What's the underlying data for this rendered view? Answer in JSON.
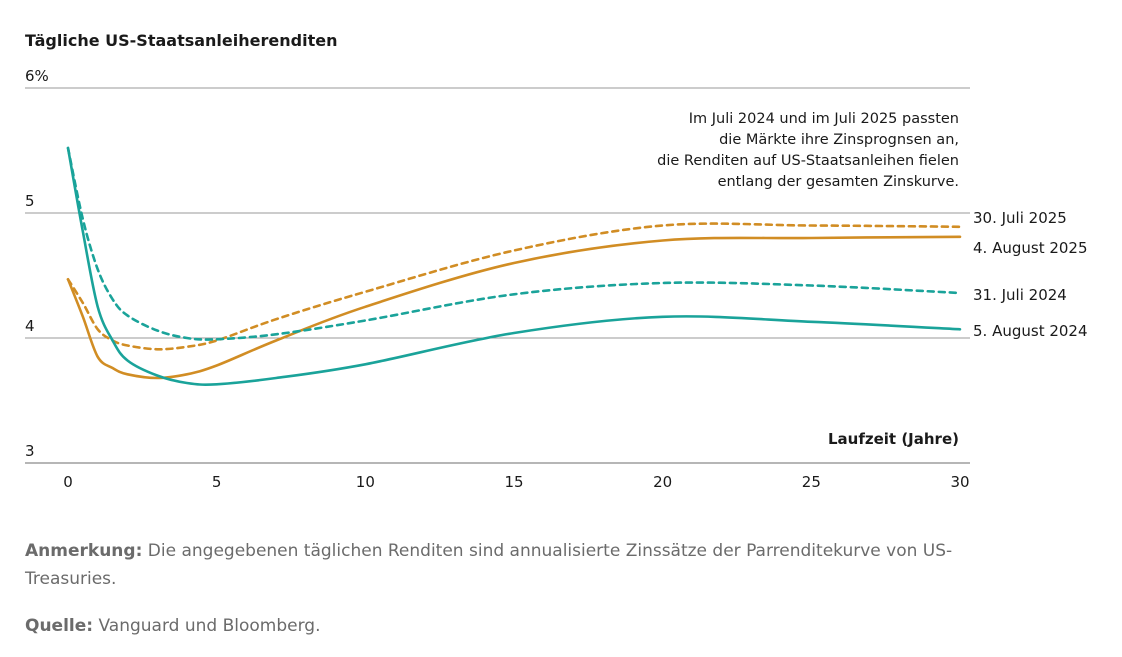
{
  "chart_data": {
    "type": "line",
    "title": "Tägliche US-Staatsanleiherenditen",
    "xlabel": "Laufzeit (Jahre)",
    "ylabel": "",
    "xlim": [
      0,
      30
    ],
    "ylim": [
      3,
      6
    ],
    "x_ticks": [
      0,
      5,
      10,
      15,
      20,
      25,
      30
    ],
    "y_ticks": [
      {
        "value": 6,
        "label": "6%"
      },
      {
        "value": 5,
        "label": "5"
      },
      {
        "value": 4,
        "label": "4"
      },
      {
        "value": 3,
        "label": "3"
      }
    ],
    "annotation": [
      "Im Juli 2024 und im Juli 2025 passten",
      "die Märkte ihre Zinsprognsen an,",
      "die Renditen auf US-Staatsanleihen fielen",
      "entlang der gesamten Zinskurve."
    ],
    "series": [
      {
        "name": "30. Juli 2025",
        "color": "#d18d24",
        "dashed": true,
        "x": [
          0,
          0.5,
          1,
          1.5,
          2,
          3,
          4,
          5,
          7,
          10,
          15,
          20,
          25,
          30
        ],
        "values": [
          4.47,
          4.28,
          4.07,
          3.98,
          3.94,
          3.91,
          3.93,
          3.98,
          4.15,
          4.37,
          4.7,
          4.9,
          4.9,
          4.89
        ]
      },
      {
        "name": "4. August 2025",
        "color": "#d18d24",
        "dashed": false,
        "x": [
          0,
          0.5,
          1,
          1.5,
          2,
          3,
          4,
          5,
          7,
          10,
          15,
          20,
          25,
          30
        ],
        "values": [
          4.47,
          4.17,
          3.85,
          3.76,
          3.71,
          3.68,
          3.71,
          3.78,
          3.98,
          4.25,
          4.6,
          4.78,
          4.8,
          4.81
        ]
      },
      {
        "name": "31. Juli 2024",
        "color": "#1aa39a",
        "dashed": true,
        "x": [
          0,
          0.5,
          1,
          1.5,
          2,
          3,
          4,
          5,
          7,
          10,
          15,
          20,
          25,
          30
        ],
        "values": [
          5.52,
          4.95,
          4.55,
          4.31,
          4.18,
          4.06,
          4.0,
          3.99,
          4.03,
          4.14,
          4.35,
          4.44,
          4.42,
          4.36
        ]
      },
      {
        "name": "5. August 2024",
        "color": "#1aa39a",
        "dashed": false,
        "x": [
          0,
          0.5,
          1,
          1.5,
          2,
          3,
          4,
          5,
          7,
          10,
          15,
          20,
          25,
          30
        ],
        "values": [
          5.52,
          4.85,
          4.25,
          3.98,
          3.82,
          3.7,
          3.64,
          3.63,
          3.68,
          3.79,
          4.04,
          4.17,
          4.13,
          4.07
        ]
      }
    ]
  },
  "notes": {
    "anmerkung_label": "Anmerkung:",
    "anmerkung_text": " Die angegebenen täglichen Renditen sind annualisierte Zinssätze der Parrenditekurve von US-Treasuries.",
    "quelle_label": "Quelle:",
    "quelle_text": " Vanguard und Bloomberg."
  }
}
